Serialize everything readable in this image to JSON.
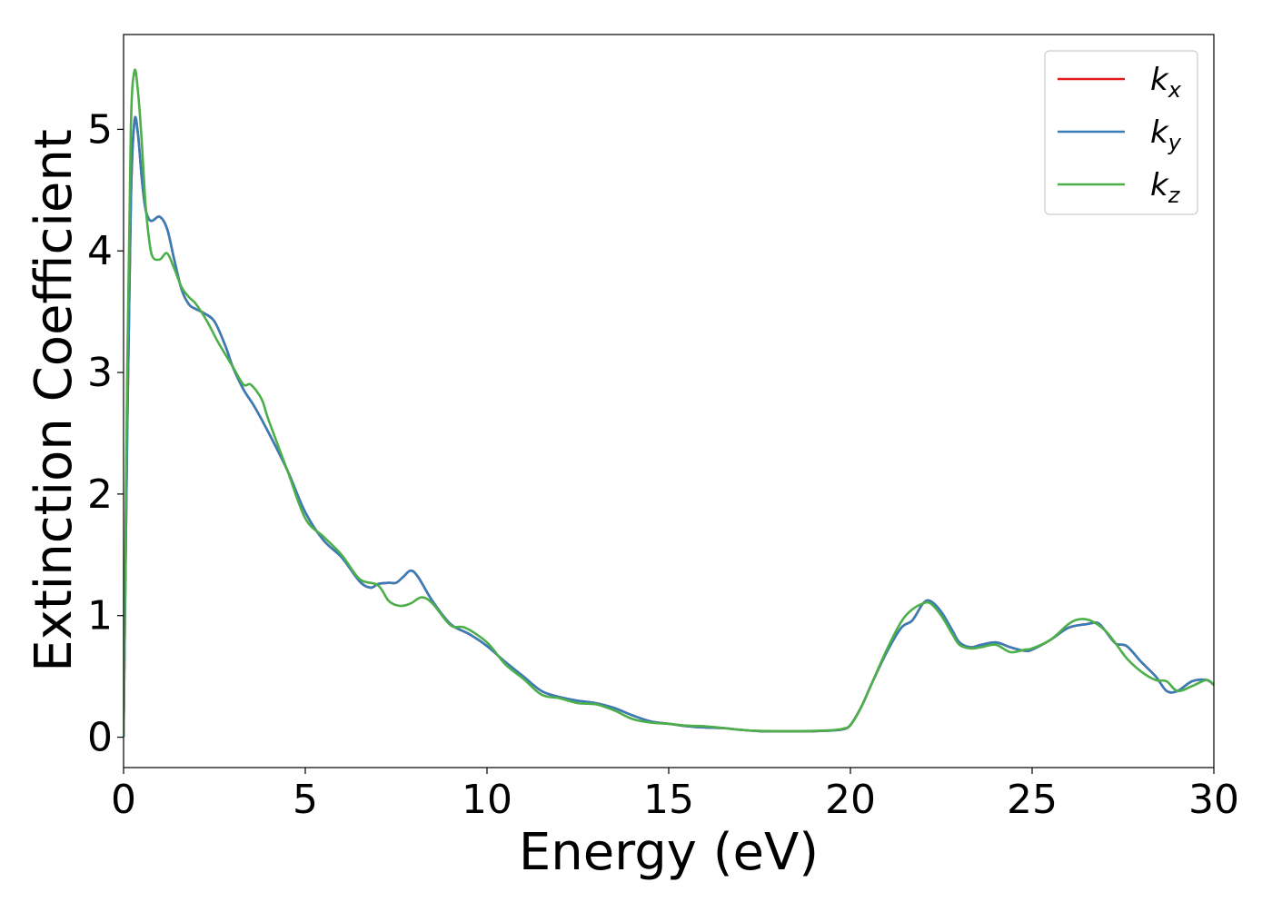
{
  "chart_data": {
    "type": "line",
    "title": "",
    "xlabel": "Energy (eV)",
    "ylabel": "Extinction Coefficient",
    "xlim": [
      0,
      30
    ],
    "ylim": [
      -0.25,
      5.78
    ],
    "xticks": [
      0,
      5,
      10,
      15,
      20,
      25,
      30
    ],
    "xtick_labels": [
      "0",
      "5",
      "10",
      "15",
      "20",
      "25",
      "30"
    ],
    "yticks": [
      0,
      1,
      2,
      3,
      4,
      5
    ],
    "ytick_labels": [
      "0",
      "1",
      "2",
      "3",
      "4",
      "5"
    ],
    "grid": false,
    "legend_position": "top-right",
    "series": [
      {
        "name": "k_x",
        "label_main": "k",
        "label_sub": "x",
        "color": "#e41a1c",
        "x": [
          0,
          0.1,
          0.2,
          0.3,
          0.4,
          0.5,
          0.6,
          0.7,
          0.8,
          1.0,
          1.2,
          1.4,
          1.6,
          1.8,
          2.0,
          2.2,
          2.5,
          2.8,
          3.0,
          3.3,
          3.6,
          4.0,
          4.5,
          5.0,
          5.5,
          6.0,
          6.5,
          6.8,
          7.0,
          7.3,
          7.5,
          7.7,
          7.9,
          8.1,
          8.5,
          9.0,
          9.5,
          10.0,
          10.5,
          11.0,
          11.5,
          12.0,
          12.5,
          13.0,
          13.5,
          14.0,
          14.5,
          15.0,
          15.5,
          16.0,
          16.5,
          17.0,
          17.5,
          18.0,
          18.5,
          19.0,
          19.5,
          19.8,
          20.0,
          20.3,
          20.6,
          21.0,
          21.4,
          21.7,
          22.0,
          22.2,
          22.5,
          22.8,
          23.0,
          23.3,
          23.6,
          24.0,
          24.4,
          24.8,
          25.0,
          25.5,
          26.0,
          26.5,
          26.8,
          27.0,
          27.3,
          27.6,
          28.0,
          28.4,
          28.7,
          29.0,
          29.4,
          29.8,
          30.0
        ],
        "y": [
          0.0,
          2.5,
          4.4,
          5.07,
          4.95,
          4.6,
          4.35,
          4.26,
          4.25,
          4.28,
          4.18,
          3.92,
          3.68,
          3.56,
          3.52,
          3.49,
          3.42,
          3.22,
          3.05,
          2.86,
          2.72,
          2.5,
          2.2,
          1.85,
          1.62,
          1.48,
          1.28,
          1.23,
          1.26,
          1.27,
          1.27,
          1.32,
          1.37,
          1.32,
          1.12,
          0.93,
          0.85,
          0.75,
          0.62,
          0.5,
          0.38,
          0.33,
          0.3,
          0.28,
          0.24,
          0.18,
          0.13,
          0.11,
          0.09,
          0.08,
          0.075,
          0.06,
          0.05,
          0.048,
          0.048,
          0.05,
          0.055,
          0.065,
          0.1,
          0.25,
          0.45,
          0.7,
          0.9,
          0.96,
          1.1,
          1.12,
          1.03,
          0.88,
          0.78,
          0.74,
          0.76,
          0.78,
          0.74,
          0.71,
          0.72,
          0.8,
          0.9,
          0.93,
          0.94,
          0.88,
          0.77,
          0.75,
          0.62,
          0.5,
          0.38,
          0.38,
          0.46,
          0.47,
          0.43
        ]
      },
      {
        "name": "k_y",
        "label_main": "k",
        "label_sub": "y",
        "color": "#377eb8",
        "x": [
          0,
          0.1,
          0.2,
          0.3,
          0.4,
          0.5,
          0.6,
          0.7,
          0.8,
          1.0,
          1.2,
          1.4,
          1.6,
          1.8,
          2.0,
          2.2,
          2.5,
          2.8,
          3.0,
          3.3,
          3.6,
          4.0,
          4.5,
          5.0,
          5.5,
          6.0,
          6.5,
          6.8,
          7.0,
          7.3,
          7.5,
          7.7,
          7.9,
          8.1,
          8.5,
          9.0,
          9.5,
          10.0,
          10.5,
          11.0,
          11.5,
          12.0,
          12.5,
          13.0,
          13.5,
          14.0,
          14.5,
          15.0,
          15.5,
          16.0,
          16.5,
          17.0,
          17.5,
          18.0,
          18.5,
          19.0,
          19.5,
          19.8,
          20.0,
          20.3,
          20.6,
          21.0,
          21.4,
          21.7,
          22.0,
          22.2,
          22.5,
          22.8,
          23.0,
          23.3,
          23.6,
          24.0,
          24.4,
          24.8,
          25.0,
          25.5,
          26.0,
          26.5,
          26.8,
          27.0,
          27.3,
          27.6,
          28.0,
          28.4,
          28.7,
          29.0,
          29.4,
          29.8,
          30.0
        ],
        "y": [
          0.0,
          2.5,
          4.4,
          5.07,
          4.95,
          4.6,
          4.35,
          4.26,
          4.25,
          4.28,
          4.18,
          3.92,
          3.68,
          3.56,
          3.52,
          3.49,
          3.42,
          3.22,
          3.05,
          2.86,
          2.72,
          2.5,
          2.2,
          1.85,
          1.62,
          1.48,
          1.28,
          1.23,
          1.26,
          1.27,
          1.27,
          1.32,
          1.37,
          1.32,
          1.12,
          0.93,
          0.85,
          0.75,
          0.62,
          0.5,
          0.38,
          0.33,
          0.3,
          0.28,
          0.24,
          0.18,
          0.13,
          0.11,
          0.09,
          0.08,
          0.075,
          0.06,
          0.05,
          0.048,
          0.048,
          0.05,
          0.055,
          0.065,
          0.1,
          0.25,
          0.45,
          0.7,
          0.9,
          0.96,
          1.1,
          1.12,
          1.03,
          0.88,
          0.78,
          0.74,
          0.76,
          0.78,
          0.74,
          0.71,
          0.72,
          0.8,
          0.9,
          0.93,
          0.94,
          0.88,
          0.77,
          0.75,
          0.62,
          0.5,
          0.38,
          0.38,
          0.46,
          0.47,
          0.43
        ]
      },
      {
        "name": "k_z",
        "label_main": "k",
        "label_sub": "z",
        "color": "#4daf4a",
        "x": [
          0,
          0.1,
          0.2,
          0.3,
          0.4,
          0.5,
          0.6,
          0.7,
          0.8,
          1.0,
          1.2,
          1.4,
          1.6,
          1.8,
          2.0,
          2.3,
          2.6,
          3.0,
          3.3,
          3.5,
          3.8,
          4.0,
          4.5,
          5.0,
          5.5,
          6.0,
          6.5,
          7.0,
          7.3,
          7.6,
          7.9,
          8.2,
          8.5,
          9.0,
          9.4,
          10.0,
          10.5,
          11.0,
          11.5,
          12.0,
          12.5,
          13.0,
          13.5,
          14.0,
          14.5,
          15.0,
          15.5,
          16.0,
          16.5,
          17.0,
          17.5,
          18.0,
          18.5,
          19.0,
          19.5,
          19.8,
          20.0,
          20.3,
          20.6,
          21.0,
          21.4,
          21.7,
          22.0,
          22.2,
          22.5,
          22.8,
          23.0,
          23.3,
          23.6,
          24.0,
          24.4,
          24.8,
          25.0,
          25.5,
          26.0,
          26.3,
          26.6,
          27.0,
          27.3,
          27.6,
          28.0,
          28.4,
          28.7,
          29.0,
          29.4,
          29.8,
          30.0
        ],
        "y": [
          0.0,
          3.0,
          5.0,
          5.48,
          5.3,
          4.9,
          4.4,
          4.1,
          3.95,
          3.93,
          3.98,
          3.85,
          3.7,
          3.62,
          3.56,
          3.42,
          3.25,
          3.05,
          2.9,
          2.9,
          2.78,
          2.6,
          2.2,
          1.8,
          1.65,
          1.5,
          1.3,
          1.25,
          1.12,
          1.08,
          1.1,
          1.15,
          1.1,
          0.92,
          0.9,
          0.78,
          0.6,
          0.48,
          0.35,
          0.32,
          0.28,
          0.27,
          0.22,
          0.15,
          0.12,
          0.11,
          0.095,
          0.09,
          0.075,
          0.06,
          0.052,
          0.05,
          0.05,
          0.052,
          0.058,
          0.07,
          0.1,
          0.25,
          0.45,
          0.72,
          0.95,
          1.05,
          1.1,
          1.1,
          1.0,
          0.85,
          0.76,
          0.73,
          0.74,
          0.76,
          0.7,
          0.72,
          0.73,
          0.8,
          0.93,
          0.97,
          0.96,
          0.88,
          0.77,
          0.65,
          0.54,
          0.47,
          0.46,
          0.38,
          0.42,
          0.47,
          0.43
        ]
      }
    ]
  }
}
